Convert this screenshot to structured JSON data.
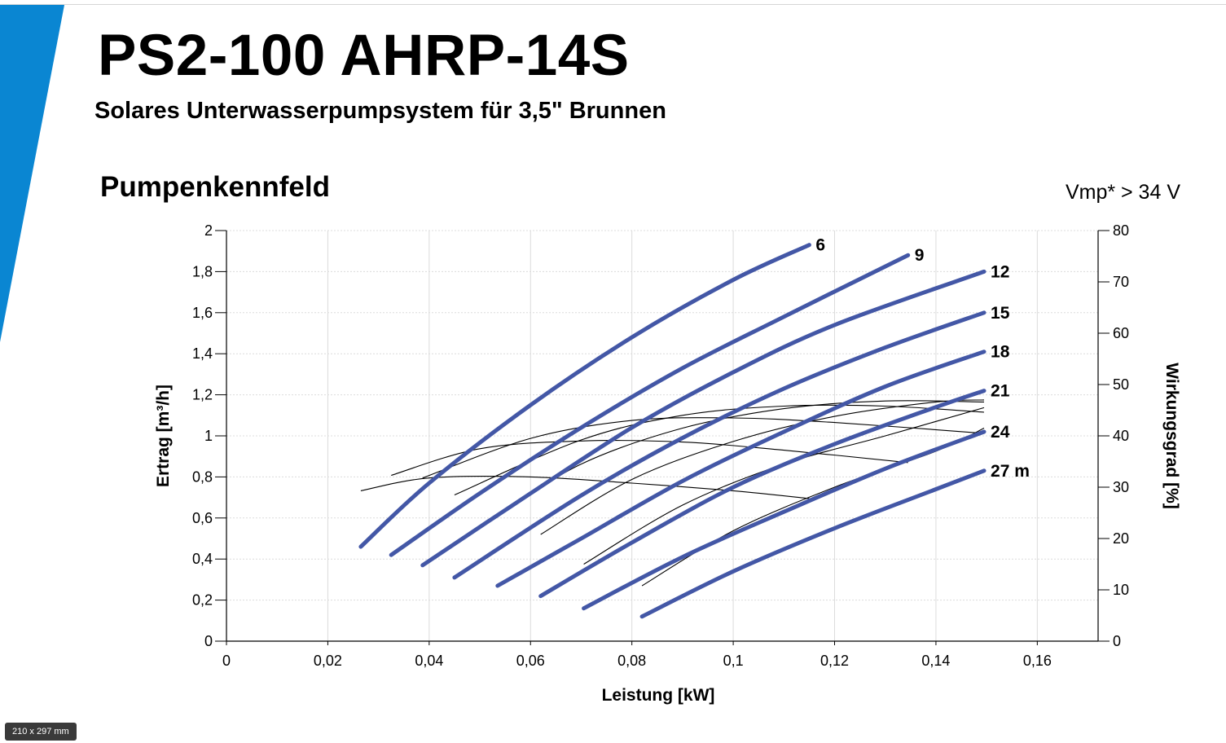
{
  "header": {
    "title": "PS2-100 AHRP-14S",
    "subtitle": "Solares Unterwasserpumpsystem für 3,5\" Brunnen"
  },
  "section_title": "Pumpenkennfeld",
  "vmp_note": "Vmp* > 34 V",
  "page_size_badge": "210 x 297 mm",
  "colors": {
    "accent_stripe": "#0a86d2",
    "flow_curve": "#4357a6",
    "efficiency_curve": "#000000",
    "grid": "#dcdcdc"
  },
  "chart_data": {
    "type": "line",
    "xlabel": "Leistung [kW]",
    "ylabel": "Ertrag [m³/h]",
    "y2label": "Wirkungsgrad [%]",
    "xlim": [
      0,
      0.172
    ],
    "ylim": [
      0,
      2
    ],
    "y2lim": [
      0,
      80
    ],
    "grid": true,
    "x_ticks": [
      {
        "value": 0,
        "label": "0"
      },
      {
        "value": 0.02,
        "label": "0,02"
      },
      {
        "value": 0.04,
        "label": "0,04"
      },
      {
        "value": 0.06,
        "label": "0,06"
      },
      {
        "value": 0.08,
        "label": "0,08"
      },
      {
        "value": 0.1,
        "label": "0,1"
      },
      {
        "value": 0.12,
        "label": "0,12"
      },
      {
        "value": 0.14,
        "label": "0,14"
      },
      {
        "value": 0.16,
        "label": "0,16"
      }
    ],
    "y_ticks": [
      {
        "value": 0,
        "label": "0"
      },
      {
        "value": 0.2,
        "label": "0,2"
      },
      {
        "value": 0.4,
        "label": "0,4"
      },
      {
        "value": 0.6,
        "label": "0,6"
      },
      {
        "value": 0.8,
        "label": "0,8"
      },
      {
        "value": 1,
        "label": "1"
      },
      {
        "value": 1.2,
        "label": "1,2"
      },
      {
        "value": 1.4,
        "label": "1,4"
      },
      {
        "value": 1.6,
        "label": "1,6"
      },
      {
        "value": 1.8,
        "label": "1,8"
      },
      {
        "value": 2,
        "label": "2"
      }
    ],
    "y2_ticks": [
      {
        "value": 0,
        "label": "0"
      },
      {
        "value": 10,
        "label": "10"
      },
      {
        "value": 20,
        "label": "20"
      },
      {
        "value": 30,
        "label": "30"
      },
      {
        "value": 40,
        "label": "40"
      },
      {
        "value": 50,
        "label": "50"
      },
      {
        "value": 60,
        "label": "60"
      },
      {
        "value": 70,
        "label": "70"
      },
      {
        "value": 80,
        "label": "80"
      }
    ],
    "series": [
      {
        "label": "6",
        "axis": "flow",
        "points": [
          [
            0.0265,
            0.46
          ],
          [
            0.04,
            0.77
          ],
          [
            0.06,
            1.15
          ],
          [
            0.08,
            1.48
          ],
          [
            0.1,
            1.76
          ],
          [
            0.115,
            1.93
          ]
        ]
      },
      {
        "label": "9",
        "axis": "flow",
        "points": [
          [
            0.0325,
            0.42
          ],
          [
            0.05,
            0.72
          ],
          [
            0.07,
            1.04
          ],
          [
            0.09,
            1.33
          ],
          [
            0.11,
            1.58
          ],
          [
            0.1345,
            1.88
          ]
        ]
      },
      {
        "label": "12",
        "axis": "flow",
        "points": [
          [
            0.0387,
            0.37
          ],
          [
            0.06,
            0.72
          ],
          [
            0.08,
            1.04
          ],
          [
            0.1,
            1.31
          ],
          [
            0.12,
            1.54
          ],
          [
            0.1495,
            1.8
          ]
        ]
      },
      {
        "label": "15",
        "axis": "flow",
        "points": [
          [
            0.045,
            0.31
          ],
          [
            0.07,
            0.71
          ],
          [
            0.09,
            0.99
          ],
          [
            0.11,
            1.23
          ],
          [
            0.13,
            1.43
          ],
          [
            0.1495,
            1.6
          ]
        ]
      },
      {
        "label": "18",
        "axis": "flow",
        "points": [
          [
            0.0535,
            0.27
          ],
          [
            0.07,
            0.5
          ],
          [
            0.09,
            0.78
          ],
          [
            0.11,
            1.02
          ],
          [
            0.13,
            1.24
          ],
          [
            0.1495,
            1.41
          ]
        ]
      },
      {
        "label": "21",
        "axis": "flow",
        "points": [
          [
            0.062,
            0.22
          ],
          [
            0.08,
            0.48
          ],
          [
            0.1,
            0.75
          ],
          [
            0.12,
            0.96
          ],
          [
            0.14,
            1.14
          ],
          [
            0.1495,
            1.22
          ]
        ]
      },
      {
        "label": "24",
        "axis": "flow",
        "points": [
          [
            0.0705,
            0.16
          ],
          [
            0.09,
            0.41
          ],
          [
            0.11,
            0.63
          ],
          [
            0.13,
            0.84
          ],
          [
            0.1495,
            1.02
          ]
        ]
      },
      {
        "label": "27 m",
        "axis": "flow",
        "points": [
          [
            0.082,
            0.12
          ],
          [
            0.1,
            0.34
          ],
          [
            0.12,
            0.55
          ],
          [
            0.14,
            0.74
          ],
          [
            0.1495,
            0.83
          ]
        ]
      },
      {
        "label": "",
        "axis": "efficiency",
        "points": [
          [
            0.0265,
            29.3
          ],
          [
            0.04,
            31.8
          ],
          [
            0.06,
            32.0
          ],
          [
            0.08,
            30.8
          ],
          [
            0.1,
            29.3
          ],
          [
            0.115,
            27.8
          ]
        ]
      },
      {
        "label": "",
        "axis": "efficiency",
        "points": [
          [
            0.0325,
            32.3
          ],
          [
            0.05,
            37.5
          ],
          [
            0.07,
            39.0
          ],
          [
            0.09,
            38.8
          ],
          [
            0.11,
            37.2
          ],
          [
            0.1345,
            34.8
          ]
        ]
      },
      {
        "label": "",
        "axis": "efficiency",
        "points": [
          [
            0.0387,
            31.8
          ],
          [
            0.06,
            39.5
          ],
          [
            0.08,
            43.0
          ],
          [
            0.1,
            43.5
          ],
          [
            0.12,
            42.6
          ],
          [
            0.1495,
            40.5
          ]
        ]
      },
      {
        "label": "",
        "axis": "efficiency",
        "points": [
          [
            0.045,
            28.5
          ],
          [
            0.07,
            39.2
          ],
          [
            0.09,
            44.0
          ],
          [
            0.11,
            45.8
          ],
          [
            0.13,
            45.8
          ],
          [
            0.1495,
            44.6
          ]
        ]
      },
      {
        "label": "",
        "axis": "efficiency",
        "points": [
          [
            0.0535,
            24.5
          ],
          [
            0.07,
            34.5
          ],
          [
            0.09,
            41.5
          ],
          [
            0.11,
            45.3
          ],
          [
            0.13,
            46.8
          ],
          [
            0.1495,
            46.6
          ]
        ]
      },
      {
        "label": "",
        "axis": "efficiency",
        "points": [
          [
            0.062,
            20.8
          ],
          [
            0.08,
            31.5
          ],
          [
            0.1,
            38.9
          ],
          [
            0.12,
            43.8
          ],
          [
            0.14,
            46.6
          ],
          [
            0.1495,
            47.0
          ]
        ]
      },
      {
        "label": "",
        "axis": "efficiency",
        "points": [
          [
            0.0705,
            15.0
          ],
          [
            0.09,
            26.5
          ],
          [
            0.11,
            34.5
          ],
          [
            0.13,
            40.0
          ],
          [
            0.1495,
            45.5
          ]
        ]
      },
      {
        "label": "",
        "axis": "efficiency",
        "points": [
          [
            0.082,
            10.8
          ],
          [
            0.1,
            21.5
          ],
          [
            0.12,
            30.0
          ],
          [
            0.14,
            37.0
          ],
          [
            0.1495,
            41.5
          ]
        ]
      }
    ]
  }
}
